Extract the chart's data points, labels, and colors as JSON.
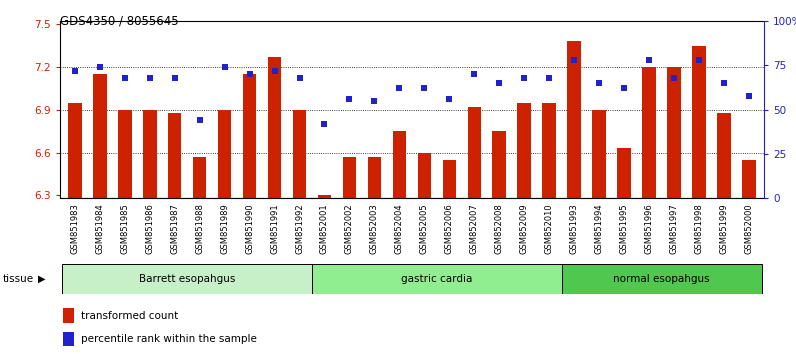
{
  "title": "GDS4350 / 8055645",
  "samples": [
    "GSM851983",
    "GSM851984",
    "GSM851985",
    "GSM851986",
    "GSM851987",
    "GSM851988",
    "GSM851989",
    "GSM851990",
    "GSM851991",
    "GSM851992",
    "GSM852001",
    "GSM852002",
    "GSM852003",
    "GSM852004",
    "GSM852005",
    "GSM852006",
    "GSM852007",
    "GSM852008",
    "GSM852009",
    "GSM852010",
    "GSM851993",
    "GSM851994",
    "GSM851995",
    "GSM851996",
    "GSM851997",
    "GSM851998",
    "GSM851999",
    "GSM852000"
  ],
  "bar_values": [
    6.95,
    7.15,
    6.9,
    6.9,
    6.88,
    6.57,
    6.9,
    7.15,
    7.27,
    6.9,
    6.3,
    6.57,
    6.57,
    6.75,
    6.6,
    6.55,
    6.92,
    6.75,
    6.95,
    6.95,
    7.38,
    6.9,
    6.63,
    7.2,
    7.2,
    7.35,
    6.88,
    6.55
  ],
  "dot_values": [
    72,
    74,
    68,
    68,
    68,
    44,
    74,
    70,
    72,
    68,
    42,
    56,
    55,
    62,
    62,
    56,
    70,
    65,
    68,
    68,
    78,
    65,
    62,
    78,
    68,
    78,
    65,
    58
  ],
  "groups": [
    {
      "label": "Barrett esopahgus",
      "start": 0,
      "end": 10,
      "color": "#c8f0c8"
    },
    {
      "label": "gastric cardia",
      "start": 10,
      "end": 20,
      "color": "#90ee90"
    },
    {
      "label": "normal esopahgus",
      "start": 20,
      "end": 28,
      "color": "#50c850"
    }
  ],
  "bar_color": "#cc2200",
  "dot_color": "#2222cc",
  "ylim_left": [
    6.28,
    7.52
  ],
  "ylim_right": [
    0,
    100
  ],
  "yticks_left": [
    6.3,
    6.6,
    6.9,
    7.2,
    7.5
  ],
  "yticks_right": [
    0,
    25,
    50,
    75,
    100
  ],
  "ytick_labels_right": [
    "0",
    "25",
    "50",
    "75",
    "100%"
  ],
  "grid_values": [
    6.6,
    6.9,
    7.2
  ],
  "bar_width": 0.55,
  "tissue_label": "tissue"
}
